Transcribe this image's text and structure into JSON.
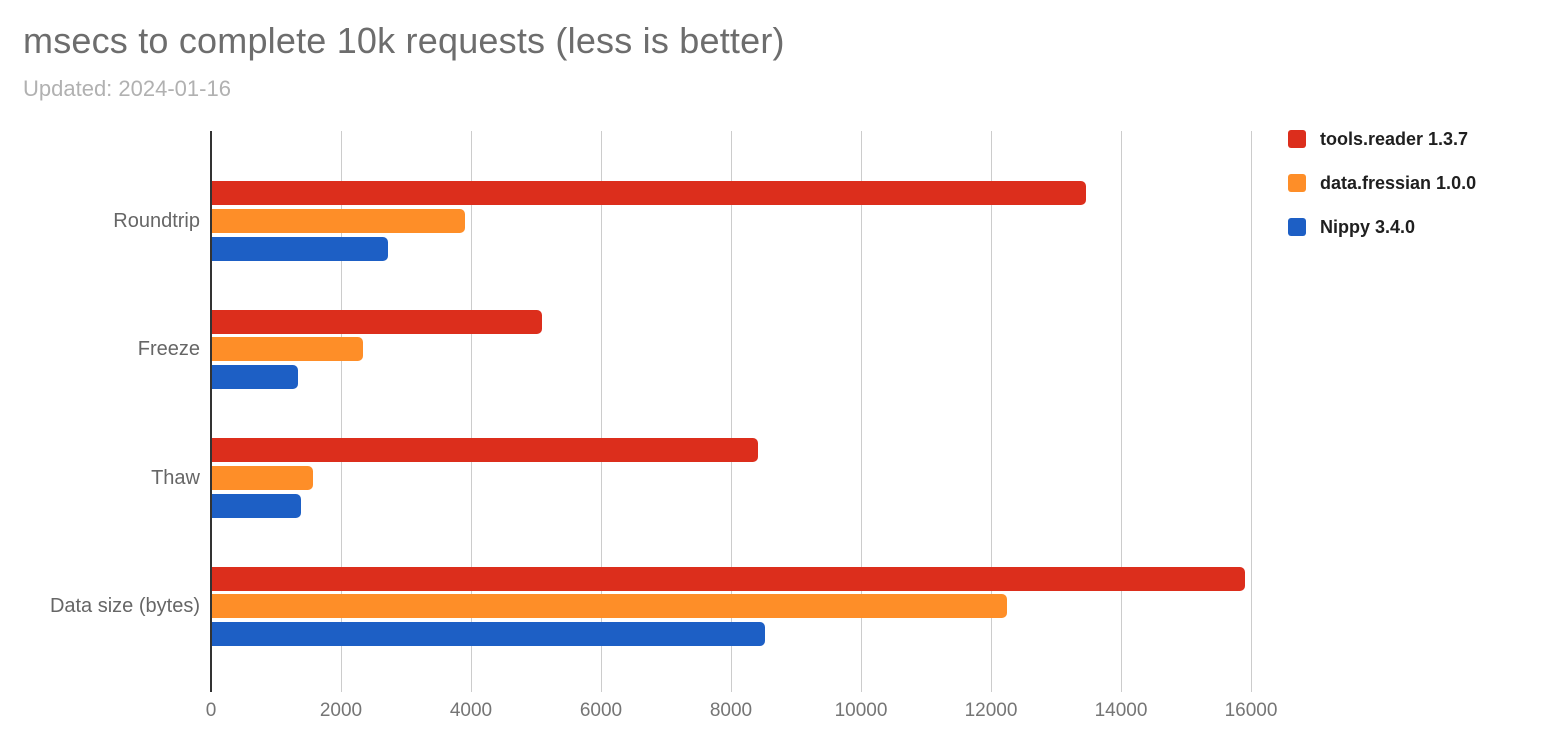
{
  "header": {
    "title": "msecs to complete 10k requests (less is better)",
    "subtitle": "Updated: 2024-01-16"
  },
  "chart_data": {
    "type": "bar",
    "orientation": "horizontal",
    "title": "msecs to complete 10k requests (less is better)",
    "subtitle": "Updated: 2024-01-16",
    "categories": [
      "Roundtrip",
      "Freeze",
      "Thaw",
      "Data size (bytes)"
    ],
    "series": [
      {
        "name": "tools.reader 1.3.7",
        "color": "#dc2e1c",
        "values": [
          13450,
          5080,
          8400,
          15890
        ]
      },
      {
        "name": "data.fressian 1.0.0",
        "color": "#fe8e28",
        "values": [
          3890,
          2330,
          1550,
          12230
        ]
      },
      {
        "name": "Nippy 3.4.0",
        "color": "#1d5fc5",
        "values": [
          2700,
          1330,
          1370,
          8500
        ]
      }
    ],
    "xlabel": "",
    "ylabel": "",
    "xlim": [
      0,
      16000
    ],
    "x_ticks": [
      0,
      2000,
      4000,
      6000,
      8000,
      10000,
      12000,
      14000,
      16000
    ],
    "grid": true,
    "legend_position": "right",
    "axis_color": "#333333",
    "gridline_color": "#cccccc",
    "tick_label_color": "#757575",
    "category_label_color": "#666666"
  }
}
